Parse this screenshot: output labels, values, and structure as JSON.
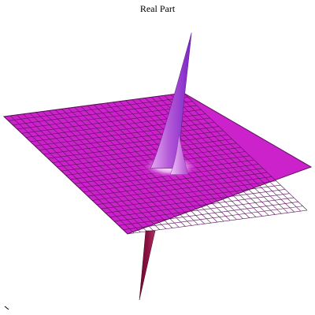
{
  "chart_data": {
    "type": "surface",
    "title": "Real Part",
    "xlabel": "",
    "ylabel": "",
    "zlabel": "",
    "grid": true,
    "legend": "none",
    "surface_color": "#cc22cc",
    "edge_color": "#5a0f5a",
    "peak_color": "#7a22c8",
    "trough_color": "#8a1040",
    "features": [
      {
        "name": "",
        "kind": "peak",
        "height": 1.0
      },
      {
        "name": "",
        "kind": "peak",
        "height": 0.3
      },
      {
        "name": "",
        "kind": "trough",
        "height": -0.55
      }
    ]
  }
}
